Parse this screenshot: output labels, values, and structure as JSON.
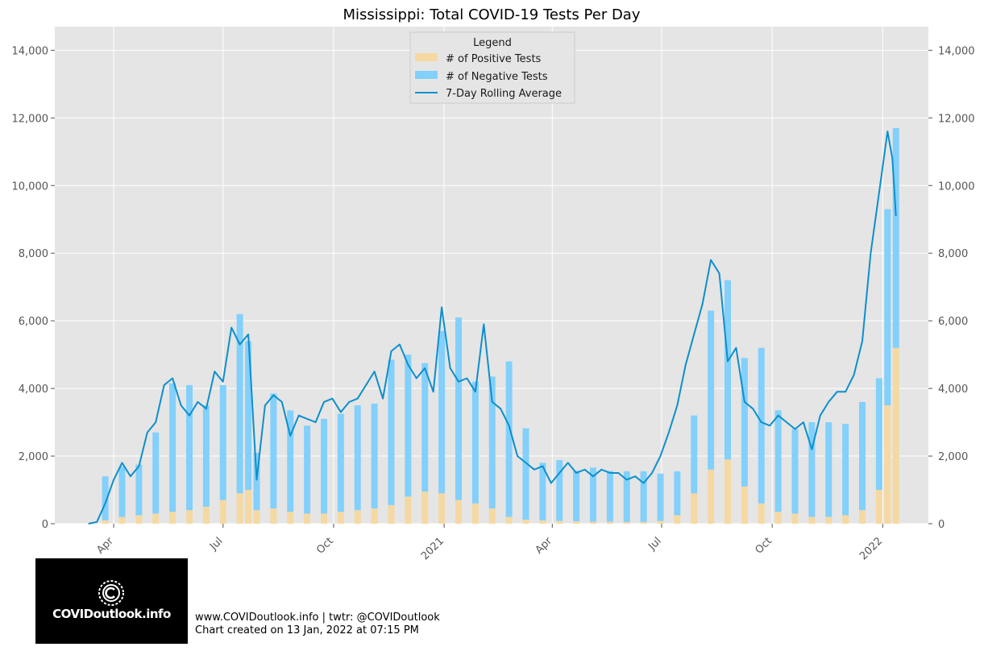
{
  "chart_data": {
    "type": "bar",
    "title": "Mississippi: Total COVID-19 Tests Per Day",
    "stacked": true,
    "x_tick_labels": [
      "Apr",
      "Jul",
      "Oct",
      "2021",
      "Apr",
      "Jul",
      "Oct",
      "2022"
    ],
    "y_tick_labels": [
      "0",
      "2,000",
      "4,000",
      "6,000",
      "8,000",
      "10,000",
      "12,000",
      "14,000"
    ],
    "ylim": [
      0,
      14700
    ],
    "grid": true,
    "legend": {
      "title": "Legend",
      "placement": "top-center",
      "entries": [
        "# of Positive Tests",
        "# of Negative Tests",
        "7-Day Rolling Average"
      ]
    },
    "colors": {
      "positive": "#f5d9a3",
      "negative": "#82d0fb",
      "rolling": "#0c8fcd",
      "background": "#e5e5e5"
    },
    "series": [
      {
        "name": "# of Positive Tests",
        "kind": "bar",
        "x": [
          "2020-03-11",
          "2020-03-25",
          "2020-04-08",
          "2020-04-22",
          "2020-05-06",
          "2020-05-20",
          "2020-06-03",
          "2020-06-17",
          "2020-07-01",
          "2020-07-15",
          "2020-07-22",
          "2020-07-29",
          "2020-08-12",
          "2020-08-26",
          "2020-09-09",
          "2020-09-23",
          "2020-10-07",
          "2020-10-21",
          "2020-11-04",
          "2020-11-18",
          "2020-12-02",
          "2020-12-16",
          "2020-12-30",
          "2021-01-13",
          "2021-01-27",
          "2021-02-10",
          "2021-02-24",
          "2021-03-10",
          "2021-03-24",
          "2021-04-07",
          "2021-04-21",
          "2021-05-05",
          "2021-05-19",
          "2021-06-02",
          "2021-06-16",
          "2021-06-30",
          "2021-07-14",
          "2021-07-28",
          "2021-08-11",
          "2021-08-25",
          "2021-09-08",
          "2021-09-22",
          "2021-10-06",
          "2021-10-20",
          "2021-11-03",
          "2021-11-17",
          "2021-12-01",
          "2021-12-15",
          "2021-12-29",
          "2022-01-05",
          "2022-01-12"
        ],
        "values": [
          0,
          100,
          200,
          250,
          300,
          350,
          400,
          500,
          700,
          900,
          1000,
          400,
          450,
          350,
          300,
          300,
          350,
          400,
          450,
          550,
          800,
          950,
          900,
          700,
          600,
          450,
          200,
          120,
          100,
          80,
          70,
          60,
          60,
          50,
          50,
          80,
          250,
          900,
          1600,
          1900,
          1100,
          600,
          350,
          300,
          200,
          200,
          250,
          400,
          1000,
          3500,
          5200
        ]
      },
      {
        "name": "# of Negative Tests",
        "kind": "bar",
        "x": [
          "2020-03-11",
          "2020-03-25",
          "2020-04-08",
          "2020-04-22",
          "2020-05-06",
          "2020-05-20",
          "2020-06-03",
          "2020-06-17",
          "2020-07-01",
          "2020-07-15",
          "2020-07-22",
          "2020-07-29",
          "2020-08-12",
          "2020-08-26",
          "2020-09-09",
          "2020-09-23",
          "2020-10-07",
          "2020-10-21",
          "2020-11-04",
          "2020-11-18",
          "2020-12-02",
          "2020-12-16",
          "2020-12-30",
          "2021-01-13",
          "2021-01-27",
          "2021-02-10",
          "2021-02-24",
          "2021-03-10",
          "2021-03-24",
          "2021-04-07",
          "2021-04-21",
          "2021-05-05",
          "2021-05-19",
          "2021-06-02",
          "2021-06-16",
          "2021-06-30",
          "2021-07-14",
          "2021-07-28",
          "2021-08-11",
          "2021-08-25",
          "2021-09-08",
          "2021-09-22",
          "2021-10-06",
          "2021-10-20",
          "2021-11-03",
          "2021-11-17",
          "2021-12-01",
          "2021-12-15",
          "2021-12-29",
          "2022-01-05",
          "2022-01-12"
        ],
        "values": [
          0,
          1300,
          1500,
          1500,
          2400,
          3800,
          3700,
          3000,
          3400,
          5300,
          4400,
          1700,
          3400,
          3000,
          2600,
          2800,
          2900,
          3100,
          3100,
          4300,
          4200,
          3800,
          4800,
          5400,
          3600,
          3900,
          4600,
          2700,
          1700,
          1800,
          1500,
          1600,
          1500,
          1500,
          1500,
          1400,
          1300,
          2300,
          4700,
          5300,
          3800,
          4600,
          3000,
          2500,
          2800,
          2800,
          2700,
          3200,
          3300,
          5800,
          6500
        ]
      },
      {
        "name": "7-Day Rolling Average",
        "kind": "line",
        "x": [
          "2020-03-11",
          "2020-03-18",
          "2020-03-25",
          "2020-04-01",
          "2020-04-08",
          "2020-04-15",
          "2020-04-22",
          "2020-04-29",
          "2020-05-06",
          "2020-05-13",
          "2020-05-20",
          "2020-05-27",
          "2020-06-03",
          "2020-06-10",
          "2020-06-17",
          "2020-06-24",
          "2020-07-01",
          "2020-07-08",
          "2020-07-15",
          "2020-07-22",
          "2020-07-29",
          "2020-08-05",
          "2020-08-12",
          "2020-08-19",
          "2020-08-26",
          "2020-09-02",
          "2020-09-09",
          "2020-09-16",
          "2020-09-23",
          "2020-09-30",
          "2020-10-07",
          "2020-10-14",
          "2020-10-21",
          "2020-10-28",
          "2020-11-04",
          "2020-11-11",
          "2020-11-18",
          "2020-11-25",
          "2020-12-02",
          "2020-12-09",
          "2020-12-16",
          "2020-12-23",
          "2020-12-30",
          "2021-01-06",
          "2021-01-13",
          "2021-01-20",
          "2021-01-27",
          "2021-02-03",
          "2021-02-10",
          "2021-02-17",
          "2021-02-24",
          "2021-03-03",
          "2021-03-10",
          "2021-03-17",
          "2021-03-24",
          "2021-03-31",
          "2021-04-07",
          "2021-04-14",
          "2021-04-21",
          "2021-04-28",
          "2021-05-05",
          "2021-05-12",
          "2021-05-19",
          "2021-05-26",
          "2021-06-02",
          "2021-06-09",
          "2021-06-16",
          "2021-06-23",
          "2021-06-30",
          "2021-07-07",
          "2021-07-14",
          "2021-07-21",
          "2021-07-28",
          "2021-08-04",
          "2021-08-11",
          "2021-08-18",
          "2021-08-25",
          "2021-09-01",
          "2021-09-08",
          "2021-09-15",
          "2021-09-22",
          "2021-09-29",
          "2021-10-06",
          "2021-10-13",
          "2021-10-20",
          "2021-10-27",
          "2021-11-03",
          "2021-11-10",
          "2021-11-17",
          "2021-11-24",
          "2021-12-01",
          "2021-12-08",
          "2021-12-15",
          "2021-12-22",
          "2021-12-29",
          "2022-01-05",
          "2022-01-09",
          "2022-01-12"
        ],
        "values": [
          0,
          50,
          600,
          1300,
          1800,
          1400,
          1700,
          2700,
          3000,
          4100,
          4300,
          3500,
          3200,
          3600,
          3400,
          4500,
          4200,
          5800,
          5300,
          5600,
          1300,
          3500,
          3800,
          3600,
          2600,
          3200,
          3100,
          3000,
          3600,
          3700,
          3300,
          3600,
          3700,
          4100,
          4500,
          3700,
          5100,
          5300,
          4700,
          4300,
          4600,
          3900,
          6400,
          4600,
          4200,
          4300,
          3900,
          5900,
          3600,
          3400,
          2900,
          2000,
          1800,
          1600,
          1700,
          1200,
          1500,
          1800,
          1500,
          1600,
          1400,
          1600,
          1500,
          1500,
          1300,
          1400,
          1200,
          1500,
          2000,
          2700,
          3500,
          4700,
          5600,
          6500,
          7800,
          7400,
          4800,
          5200,
          3600,
          3400,
          3000,
          2900,
          3200,
          3000,
          2800,
          3000,
          2200,
          3200,
          3600,
          3900,
          3900,
          4400,
          5400,
          8000,
          9800,
          11600,
          10800,
          9100
        ]
      }
    ]
  },
  "branding": {
    "logo_text": "COVIDoutlook.info",
    "footer_line1": "www.COVIDoutlook.info | twtr: @COVIDoutlook",
    "footer_line2": "Chart created on 13 Jan, 2022 at 07:15 PM"
  }
}
